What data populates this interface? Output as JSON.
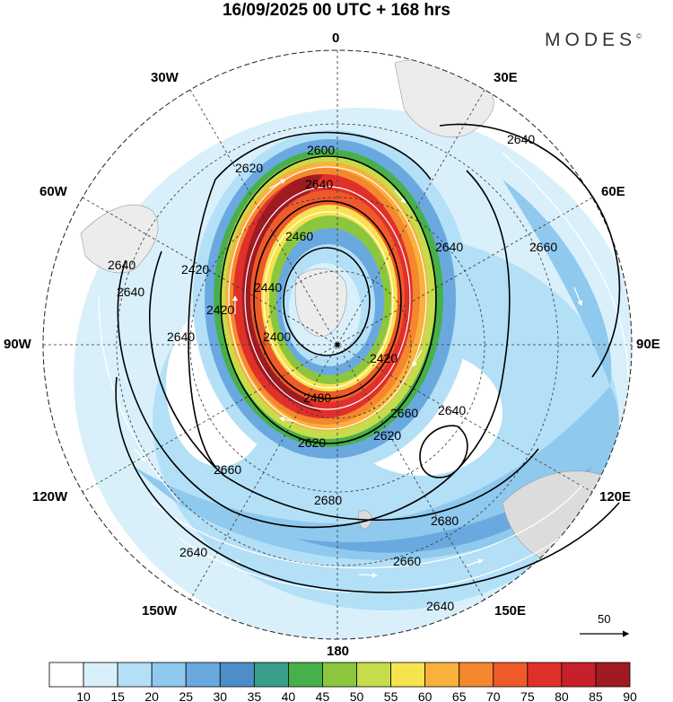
{
  "title": "16/09/2025  00 UTC  + 168 hrs",
  "brand": "MODES",
  "brand_mark": "©",
  "longitude_labels": {
    "lon_0": "0",
    "lon_30e": "30E",
    "lon_60e": "60E",
    "lon_90e": "90E",
    "lon_120e": "120E",
    "lon_150e": "150E",
    "lon_180": "180",
    "lon_150w": "150W",
    "lon_120w": "120W",
    "lon_90w": "90W",
    "lon_60w": "60W",
    "lon_30w": "30W"
  },
  "contour_labels": [
    "2640",
    "2600",
    "2620",
    "2640",
    "2460",
    "2440",
    "2420",
    "2400",
    "2620",
    "2640",
    "2640",
    "2660",
    "2640",
    "2640",
    "2640",
    "2660",
    "2680",
    "2680",
    "2660",
    "2640",
    "2480",
    "2620",
    "2660",
    "2640",
    "2420",
    "2420"
  ],
  "reference_vector": {
    "label": "50"
  },
  "colorbar": {
    "labels": [
      "10",
      "15",
      "20",
      "25",
      "30",
      "35",
      "40",
      "45",
      "50",
      "55",
      "60",
      "65",
      "70",
      "75",
      "80",
      "85",
      "90"
    ],
    "colors": [
      "#ffffff",
      "#d9f0fb",
      "#b3e0f7",
      "#8fc9ee",
      "#6aa9df",
      "#4d8ec8",
      "#3a9e8c",
      "#48b04a",
      "#8cc63f",
      "#c6dc4b",
      "#f7e34f",
      "#f9b13b",
      "#f5872f",
      "#ef5a2a",
      "#e0302a",
      "#c7202a",
      "#a01a22"
    ]
  }
}
